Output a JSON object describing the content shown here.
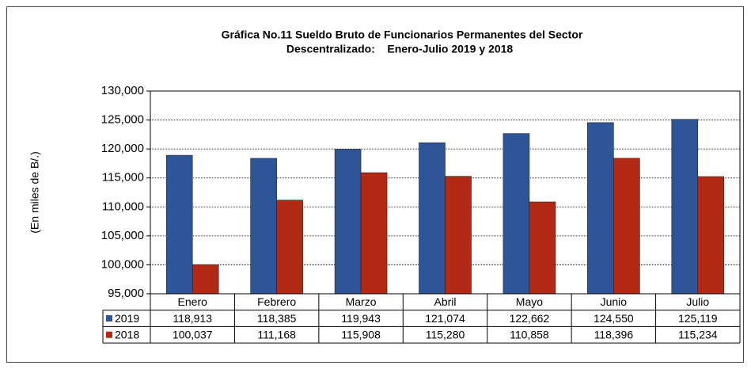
{
  "chart_data": {
    "type": "bar",
    "title": [
      "Gráfica No.11 Sueldo Bruto de Funcionarios Permanentes del Sector",
      "Descentralizado:    Enero-Julio 2019 y 2018"
    ],
    "y_label": "(En miles de B/.)",
    "categories": [
      "Enero",
      "Febrero",
      "Marzo",
      "Abril",
      "Mayo",
      "Junio",
      "Julio"
    ],
    "series": [
      {
        "name": "2019",
        "color": "#2e5597",
        "values": [
          118913,
          118385,
          119943,
          121074,
          122662,
          124550,
          125119
        ],
        "value_labels": [
          "118,913",
          "118,385",
          "119,943",
          "121,074",
          "122,662",
          "124,550",
          "125,119"
        ]
      },
      {
        "name": "2018",
        "color": "#b22a14",
        "values": [
          100037,
          111168,
          115908,
          115280,
          110858,
          118396,
          115234
        ],
        "value_labels": [
          "100,037",
          "111,168",
          "115,908",
          "115,280",
          "110,858",
          "118,396",
          "115,234"
        ]
      }
    ],
    "ylim": [
      95000,
      130000
    ],
    "yticks": [
      {
        "value": 95000,
        "label": "95,000"
      },
      {
        "value": 100000,
        "label": "100,000"
      },
      {
        "value": 105000,
        "label": "105,000"
      },
      {
        "value": 110000,
        "label": "110,000"
      },
      {
        "value": 115000,
        "label": "115,000"
      },
      {
        "value": 120000,
        "label": "120,000"
      },
      {
        "value": 125000,
        "label": "125,000"
      },
      {
        "value": 130000,
        "label": "130,000"
      }
    ],
    "grid": true,
    "data_table": true
  }
}
